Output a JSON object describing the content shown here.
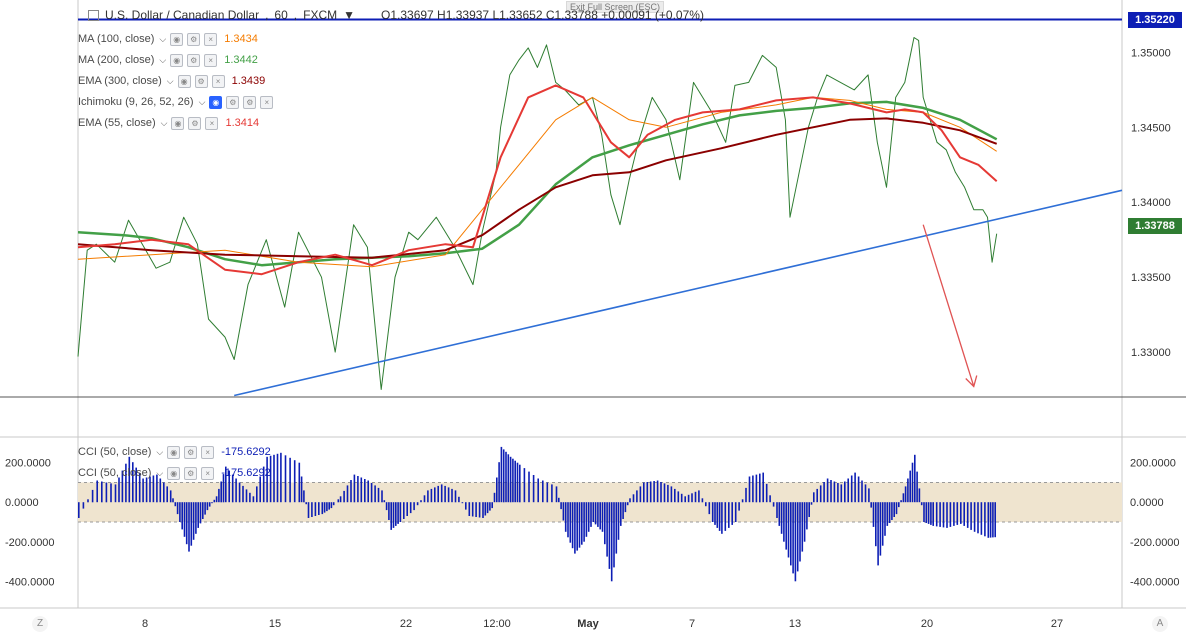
{
  "header": {
    "symbol": "U.S. Dollar / Canadian Dollar",
    "interval": "60",
    "exchange": "FXCM",
    "ohlc": "O1.33697  H1.33937  L1.33652  C1.33788  +0.00091 (+0.07%)",
    "exit_fullscreen": "Exit Full Screen (ESC)"
  },
  "legend": [
    {
      "name": "MA (100, close)",
      "value": "1.3434",
      "color": "#f57c00"
    },
    {
      "name": "MA (200, close)",
      "value": "1.3442",
      "color": "#43a047"
    },
    {
      "name": "EMA (300, close)",
      "value": "1.3439",
      "color": "#8b0000"
    },
    {
      "name": "Ichimoku (9, 26, 52, 26)",
      "value": "",
      "color": "#9e9e9e"
    },
    {
      "name": "EMA (55, close)",
      "value": "1.3414",
      "color": "#e53935"
    }
  ],
  "cci_legend": [
    {
      "name": "CCI (50, close)",
      "value": "-175.6292",
      "color": "#0d1eb5"
    },
    {
      "name": "CCI (50, close)",
      "value": "-175.6292",
      "color": "#0d1eb5"
    }
  ],
  "price_labels": {
    "resistance": "1.35220",
    "last": "1.33788"
  },
  "corners": {
    "left": "Z",
    "right": "A"
  },
  "chart_data": [
    {
      "type": "line",
      "title": "U.S. Dollar / Canadian Dollar, 60, FXCM",
      "x_ticks": [
        "8",
        "15",
        "22",
        "12:00",
        "May",
        "7",
        "13",
        "20",
        "27"
      ],
      "y_ticks": [
        "1.35000",
        "1.34500",
        "1.34000",
        "1.33500",
        "1.33000"
      ],
      "ylim": [
        1.327,
        1.3535
      ],
      "series": [
        {
          "name": "Price",
          "color": "#2f7d32",
          "x": [
            0,
            10,
            20,
            40,
            55,
            70,
            85,
            100,
            115,
            130,
            142,
            160,
            170,
            185,
            205,
            225,
            240,
            265,
            280,
            300,
            315,
            330,
            345,
            360,
            370,
            390,
            410,
            430,
            440,
            455,
            460,
            470,
            480,
            490,
            500,
            510,
            520,
            530,
            545,
            560,
            570,
            580,
            590,
            600,
            610,
            625,
            640,
            655,
            670,
            690,
            705,
            715,
            730,
            745,
            760,
            770,
            775,
            785,
            795,
            805,
            815,
            830,
            845,
            860,
            870,
            880,
            890,
            900,
            910,
            915,
            920,
            925,
            935,
            945,
            955,
            965,
            975,
            985,
            990,
            995,
            1000
          ],
          "y": [
            1.3297,
            1.3368,
            1.3372,
            1.336,
            1.3388,
            1.3372,
            1.3356,
            1.336,
            1.339,
            1.3372,
            1.3322,
            1.331,
            1.3295,
            1.3345,
            1.3375,
            1.333,
            1.338,
            1.335,
            1.33,
            1.3385,
            1.337,
            1.3275,
            1.335,
            1.338,
            1.3375,
            1.339,
            1.337,
            1.3345,
            1.338,
            1.342,
            1.345,
            1.3485,
            1.3495,
            1.3503,
            1.349,
            1.3505,
            1.348,
            1.3475,
            1.3465,
            1.347,
            1.3445,
            1.3405,
            1.3385,
            1.3415,
            1.344,
            1.347,
            1.3455,
            1.3415,
            1.348,
            1.346,
            1.344,
            1.3478,
            1.348,
            1.3498,
            1.349,
            1.3455,
            1.339,
            1.342,
            1.345,
            1.347,
            1.3485,
            1.348,
            1.3475,
            1.3485,
            1.344,
            1.341,
            1.347,
            1.348,
            1.351,
            1.3508,
            1.347,
            1.346,
            1.344,
            1.3435,
            1.342,
            1.341,
            1.3395,
            1.3395,
            1.339,
            1.336,
            1.3379
          ]
        },
        {
          "name": "MA (200, close)",
          "color": "#43a047",
          "x": [
            0,
            50,
            80,
            120,
            160,
            200,
            240,
            280,
            320,
            360,
            400,
            440,
            480,
            520,
            560,
            600,
            640,
            680,
            720,
            760,
            800,
            840,
            880,
            920,
            960,
            1000
          ],
          "y": [
            1.338,
            1.3378,
            1.3376,
            1.337,
            1.3362,
            1.3358,
            1.336,
            1.3362,
            1.3363,
            1.3364,
            1.3366,
            1.3369,
            1.3385,
            1.3412,
            1.343,
            1.3438,
            1.3445,
            1.3452,
            1.3458,
            1.3461,
            1.3463,
            1.3466,
            1.3467,
            1.3463,
            1.3455,
            1.3442
          ]
        },
        {
          "name": "MA (100, close)",
          "color": "#f57c00",
          "x": [
            0,
            80,
            160,
            240,
            320,
            400,
            440,
            480,
            520,
            560,
            600,
            640,
            700,
            760,
            800,
            840,
            880,
            920,
            960,
            1000
          ],
          "y": [
            1.3362,
            1.3365,
            1.3368,
            1.336,
            1.3357,
            1.3365,
            1.3395,
            1.3425,
            1.3455,
            1.347,
            1.3455,
            1.345,
            1.346,
            1.3465,
            1.347,
            1.3468,
            1.3462,
            1.346,
            1.345,
            1.3434
          ]
        },
        {
          "name": "EMA (300, close)",
          "color": "#8b0000",
          "x": [
            0,
            80,
            160,
            240,
            320,
            400,
            440,
            480,
            520,
            560,
            600,
            640,
            700,
            760,
            800,
            840,
            880,
            920,
            960,
            1000
          ],
          "y": [
            1.3372,
            1.3368,
            1.3365,
            1.3364,
            1.3363,
            1.3368,
            1.3378,
            1.3395,
            1.341,
            1.3418,
            1.342,
            1.3428,
            1.3436,
            1.3445,
            1.345,
            1.3455,
            1.3456,
            1.3453,
            1.3448,
            1.3439
          ]
        },
        {
          "name": "EMA (55, close)",
          "color": "#e53935",
          "x": [
            0,
            40,
            80,
            120,
            160,
            200,
            240,
            280,
            320,
            360,
            400,
            430,
            460,
            490,
            520,
            550,
            580,
            600,
            620,
            650,
            680,
            720,
            760,
            800,
            840,
            880,
            900,
            920,
            940,
            960,
            980,
            1000
          ],
          "y": [
            1.337,
            1.3372,
            1.3375,
            1.3372,
            1.3355,
            1.3352,
            1.336,
            1.3365,
            1.3358,
            1.3368,
            1.3372,
            1.337,
            1.343,
            1.347,
            1.3478,
            1.347,
            1.344,
            1.343,
            1.3445,
            1.3455,
            1.346,
            1.3462,
            1.3468,
            1.347,
            1.3466,
            1.346,
            1.3462,
            1.346,
            1.3448,
            1.343,
            1.3425,
            1.3414
          ]
        },
        {
          "name": "Resistance 1.35220",
          "color": "#0d1eb5",
          "x": [
            0,
            1000
          ],
          "y": [
            1.3522,
            1.3522
          ]
        },
        {
          "name": "Trendline",
          "color": "#2f6fd6",
          "x": [
            170,
            1000
          ],
          "y": [
            1.3271,
            1.3403
          ]
        },
        {
          "name": "Projection",
          "color": "#e05353",
          "x": [
            920,
            975
          ],
          "y": [
            1.3385,
            1.3277
          ]
        }
      ]
    },
    {
      "type": "bar",
      "title": "CCI (50, close)",
      "y_ticks": [
        "200.0000",
        "0.0000",
        "-200.0000",
        "-400.0000"
      ],
      "ylim": [
        -520,
        330
      ],
      "band": [
        -100,
        100
      ],
      "x": [
        0,
        20,
        40,
        55,
        70,
        85,
        100,
        110,
        120,
        130,
        140,
        150,
        160,
        175,
        190,
        205,
        220,
        240,
        250,
        265,
        275,
        285,
        300,
        315,
        330,
        340,
        350,
        365,
        380,
        395,
        410,
        425,
        440,
        450,
        460,
        470,
        480,
        500,
        520,
        530,
        540,
        550,
        560,
        570,
        580,
        590,
        600,
        615,
        630,
        645,
        660,
        675,
        690,
        700,
        715,
        730,
        745,
        760,
        770,
        780,
        790,
        800,
        815,
        830,
        845,
        860,
        870,
        880,
        890,
        900,
        910,
        920,
        930,
        945,
        960,
        975,
        990,
        1000
      ],
      "values": [
        -80,
        110,
        90,
        230,
        120,
        140,
        60,
        -100,
        -250,
        -130,
        -40,
        30,
        180,
        100,
        30,
        230,
        250,
        200,
        -80,
        -60,
        -30,
        30,
        140,
        110,
        60,
        -140,
        -100,
        -40,
        60,
        90,
        60,
        -70,
        -80,
        -30,
        280,
        230,
        190,
        120,
        80,
        -150,
        -260,
        -200,
        -100,
        -150,
        -400,
        -120,
        20,
        100,
        110,
        80,
        30,
        60,
        -100,
        -160,
        -100,
        130,
        150,
        -80,
        -240,
        -400,
        -200,
        50,
        120,
        90,
        150,
        70,
        -320,
        -120,
        -60,
        80,
        240,
        -100,
        -120,
        -130,
        -110,
        -150,
        -180,
        -176
      ]
    }
  ]
}
